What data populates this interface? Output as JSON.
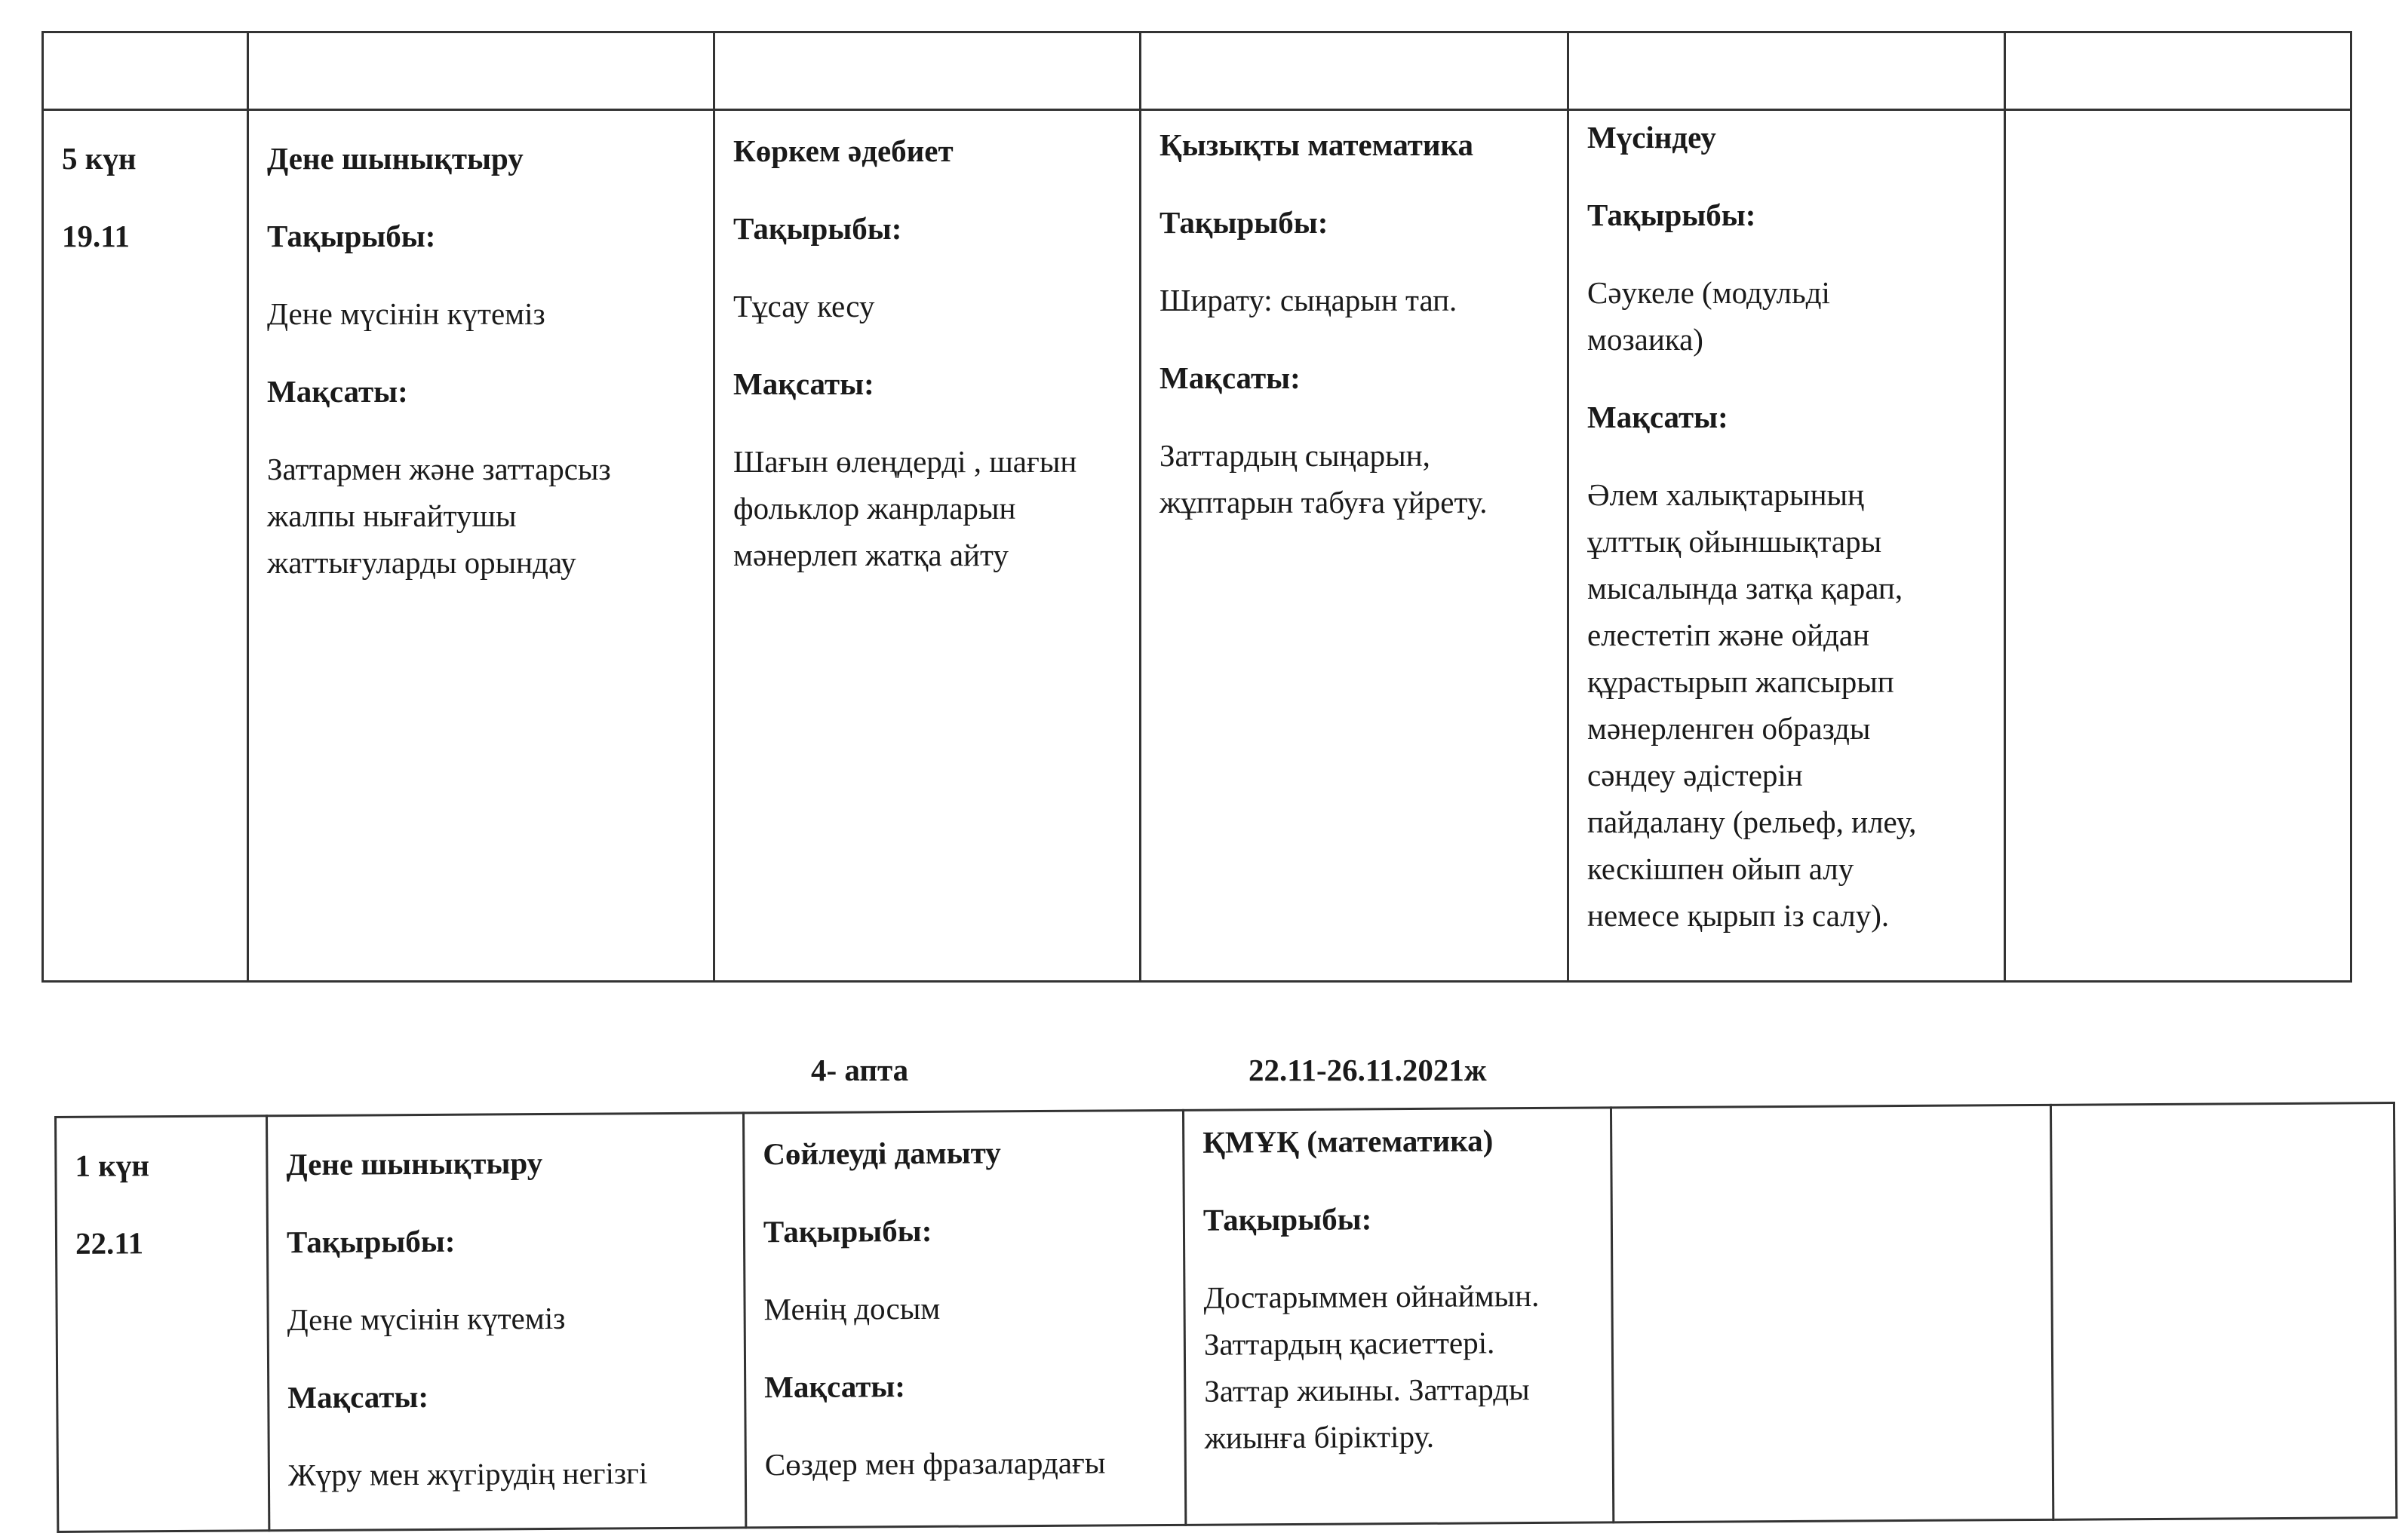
{
  "labels": {
    "topic": "Тақырыбы:",
    "goal": "Мақсаты:"
  },
  "table1": {
    "day": "5 күн",
    "date": "19.11",
    "lessons": [
      {
        "subject": "Дене шынықтыру",
        "topic": [
          "Дене мүсінін күтеміз"
        ],
        "goal": [
          "Заттармен және заттарсыз",
          "жалпы нығайтушы",
          "жаттығуларды орындау"
        ]
      },
      {
        "subject": "Көркем әдебиет",
        "topic": [
          "Тұсау кесу"
        ],
        "goal": [
          "Шағын өлеңдерді , шағын",
          "фольклор жанрларын",
          "мәнерлеп  жатқа айту"
        ]
      },
      {
        "subject": "Қызықты математика",
        "topic": [
          "Ширату: сыңарын тап."
        ],
        "goal": [
          "Заттардың сыңарын,",
          "жұптарын табуға үйрету."
        ]
      },
      {
        "subject": "Мүсіндеу",
        "topic": [
          "Сәукеле (модульді",
          "мозаика)"
        ],
        "goal": [
          "Әлем халықтарының",
          "ұлттық ойыншықтары",
          "мысалында затқа қарап,",
          "елестетіп және ойдан",
          "құрастырып жапсырып",
          "мәнерленген образды",
          "сәндеу әдістерін",
          "пайдалану (рельеф, илеу,",
          "кескішпен ойып алу",
          "немесе қырып із салу)."
        ]
      }
    ]
  },
  "week_heading": {
    "week": "4- апта",
    "range": "22.11-26.11.2021ж"
  },
  "table2": {
    "day": "1 күн",
    "date": "22.11",
    "lessons": [
      {
        "subject": "Дене шынықтыру",
        "topic": [
          "Дене мүсінін күтеміз"
        ],
        "goal": [
          "Жүру мен жүгірудің негізгі"
        ]
      },
      {
        "subject": "Сөйлеуді дамыту",
        "topic": [
          "Менің досым"
        ],
        "goal": [
          "Сөздер мен фразалардағы"
        ]
      },
      {
        "subject": "ҚМҰҚ (математика)",
        "topic": [
          "Достарыммен ойнаймын.",
          "Заттардың қасиеттері.",
          "Заттар жиыны. Заттарды",
          "жиынға біріктіру."
        ]
      }
    ]
  }
}
